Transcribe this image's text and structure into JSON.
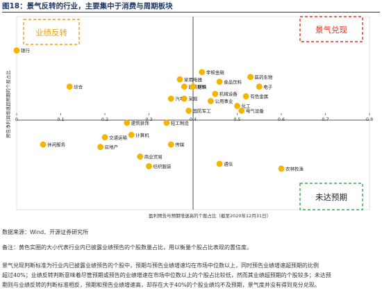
{
  "figure": {
    "title": "图18：景气反转的行业，主要集中于消费与周期板块"
  },
  "chart_data": {
    "type": "scatter",
    "xlabel": "盈利预告与预期增速高的个股占比（截至2020年12月31日）",
    "ylabel": "预告净利润增速超预期的个股占比",
    "xlim": [
      0,
      0.8
    ],
    "ylim": [
      0,
      0.8
    ],
    "x_ticks": [
      "0",
      "0.1",
      "0.2",
      "0.3",
      "0.4",
      "0.5",
      "0.6",
      "0.7",
      "0.8"
    ],
    "divider_x": 0.4,
    "divider_y": 0.4,
    "marker_color": "#f4b400",
    "quadrant_labels": {
      "top_left": "业绩反转",
      "top_right": "景气兑现",
      "bottom_right": "未达预期"
    },
    "quadrant_colors": {
      "top_left": "#f0a000",
      "top_right": "#e0301e",
      "bottom_right": "#34a853"
    },
    "points": [
      {
        "label": "银行",
        "x": 0.0,
        "y": 0.66
      },
      {
        "label": "综合",
        "x": 0.12,
        "y": 0.51
      },
      {
        "label": "休闲服务",
        "x": 0.06,
        "y": 0.27
      },
      {
        "label": "交通运输",
        "x": 0.2,
        "y": 0.3
      },
      {
        "label": "建筑装饰",
        "x": 0.25,
        "y": 0.36
      },
      {
        "label": "房地产",
        "x": 0.19,
        "y": 0.26
      },
      {
        "label": "计算机",
        "x": 0.26,
        "y": 0.31
      },
      {
        "label": "商业贸易",
        "x": 0.28,
        "y": 0.22
      },
      {
        "label": "纺织服装",
        "x": 0.3,
        "y": 0.18
      },
      {
        "label": "家用电器",
        "x": 0.37,
        "y": 0.54
      },
      {
        "label": "建筑材料",
        "x": 0.38,
        "y": 0.51
      },
      {
        "label": "汽车",
        "x": 0.35,
        "y": 0.46
      },
      {
        "label": "采掘",
        "x": 0.38,
        "y": 0.46
      },
      {
        "label": "非银金融",
        "x": 0.42,
        "y": 0.57
      },
      {
        "label": "钢铁",
        "x": 0.4,
        "y": 0.51
      },
      {
        "label": "食品饮料",
        "x": 0.46,
        "y": 0.53
      },
      {
        "label": "机械设备",
        "x": 0.45,
        "y": 0.48
      },
      {
        "label": "公用事业",
        "x": 0.44,
        "y": 0.45
      },
      {
        "label": "化工",
        "x": 0.5,
        "y": 0.43
      },
      {
        "label": "医药生物",
        "x": 0.53,
        "y": 0.55
      },
      {
        "label": "电子",
        "x": 0.55,
        "y": 0.51
      },
      {
        "label": "有色金属",
        "x": 0.52,
        "y": 0.47
      },
      {
        "label": "电气设备",
        "x": 0.51,
        "y": 0.41
      },
      {
        "label": "国防军工",
        "x": 0.39,
        "y": 0.41
      },
      {
        "label": "轻工制造",
        "x": 0.34,
        "y": 0.36
      },
      {
        "label": "传媒",
        "x": 0.35,
        "y": 0.27
      },
      {
        "label": "通信",
        "x": 0.46,
        "y": 0.19
      },
      {
        "label": "农林牧渔",
        "x": 0.6,
        "y": 0.17
      }
    ]
  },
  "notes": {
    "source": "数据来源：Wind、开源证券研究所",
    "remark": "备注：黄色实圈的大小代表行业内已披露业绩预告的个股数量占比，用以衡量个股占比表现的置信度。",
    "explain1": "景气兑现判断标准为行业内已披露业绩预告的个股中，预期与预告业绩增速均在市场中位数以上，同时预告业绩增速超预期的比例",
    "explain2": "超过40%；业绩反转判断意味着尽管预期或预告的业绩增速在市场中位数以上的个股占比较低，然而其业绩超预期的个股较多；未达预",
    "explain3": "期则与业绩反转的判断标准相反，预期和预告业绩增速高，却存在大于40%的个股业绩均不及预期，景气度并没有得到充分兑现。"
  }
}
